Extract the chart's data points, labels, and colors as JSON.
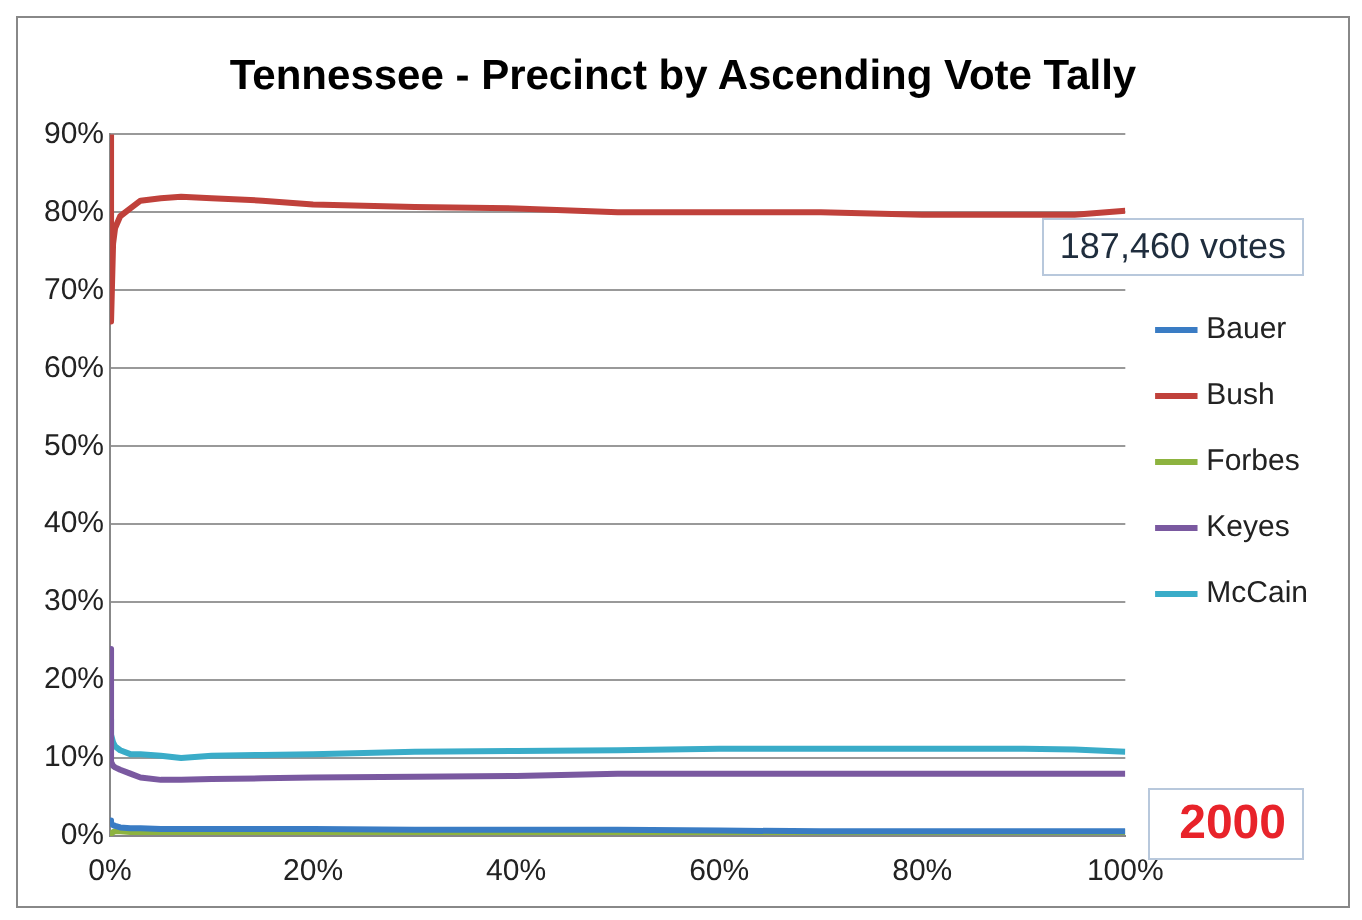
{
  "chart_data": {
    "type": "line",
    "title": "Tennessee - Precinct by Ascending Vote Tally",
    "x": [
      0,
      0.1,
      0.3,
      0.5,
      1,
      2,
      3,
      5,
      7,
      10,
      15,
      20,
      30,
      40,
      50,
      60,
      70,
      80,
      90,
      95,
      100
    ],
    "series": [
      {
        "name": "Bauer",
        "color": "#3a7cc4",
        "values": [
          2,
          1.6,
          1.4,
          1.3,
          1.1,
          1,
          1,
          0.9,
          0.9,
          0.9,
          0.9,
          0.9,
          0.8,
          0.8,
          0.8,
          0.7,
          0.6,
          0.6,
          0.6,
          0.6,
          0.6
        ]
      },
      {
        "name": "Bush",
        "color": "#c0413b",
        "values": [
          90,
          66,
          76,
          78,
          79.5,
          80.5,
          81.5,
          81.8,
          82,
          81.8,
          81.5,
          81,
          80.7,
          80.5,
          80,
          80,
          80,
          79.7,
          79.7,
          79.7,
          80.2
        ]
      },
      {
        "name": "Forbes",
        "color": "#8db33f",
        "values": [
          0,
          0.3,
          0.5,
          0.6,
          0.6,
          0.5,
          0.5,
          0.5,
          0.5,
          0.5,
          0.5,
          0.5,
          0.5,
          0.5,
          0.5,
          0.5,
          0.5,
          0.5,
          0.5,
          0.5,
          0.5
        ]
      },
      {
        "name": "Keyes",
        "color": "#7a59a0",
        "values": [
          24,
          9.5,
          9,
          8.8,
          8.5,
          8,
          7.5,
          7.2,
          7.2,
          7.3,
          7.4,
          7.5,
          7.6,
          7.7,
          8,
          8,
          8,
          8,
          8,
          8,
          8
        ]
      },
      {
        "name": "McCain",
        "color": "#3aacc8",
        "values": [
          15,
          13,
          12,
          11.5,
          11,
          10.5,
          10.5,
          10.3,
          10,
          10.3,
          10.4,
          10.5,
          10.8,
          10.9,
          11,
          11.2,
          11.2,
          11.2,
          11.2,
          11.1,
          10.8
        ]
      }
    ],
    "xlim": [
      0,
      100
    ],
    "xticks": [
      {
        "value": 0,
        "label": "0%"
      },
      {
        "value": 20,
        "label": "20%"
      },
      {
        "value": 40,
        "label": "40%"
      },
      {
        "value": 60,
        "label": "60%"
      },
      {
        "value": 80,
        "label": "80%"
      },
      {
        "value": 100,
        "label": "100%"
      }
    ],
    "ylim": [
      0,
      90
    ],
    "yticks": [
      {
        "value": 0,
        "label": "0%"
      },
      {
        "value": 10,
        "label": "10%"
      },
      {
        "value": 20,
        "label": "20%"
      },
      {
        "value": 30,
        "label": "30%"
      },
      {
        "value": 40,
        "label": "40%"
      },
      {
        "value": 50,
        "label": "50%"
      },
      {
        "value": 60,
        "label": "60%"
      },
      {
        "value": 70,
        "label": "70%"
      },
      {
        "value": 80,
        "label": "80%"
      },
      {
        "value": 90,
        "label": "90%"
      }
    ],
    "grid": "y",
    "legend": "right",
    "marker": "none",
    "line_style": "solid",
    "annotations": [
      "187,460 votes",
      "2000"
    ]
  }
}
